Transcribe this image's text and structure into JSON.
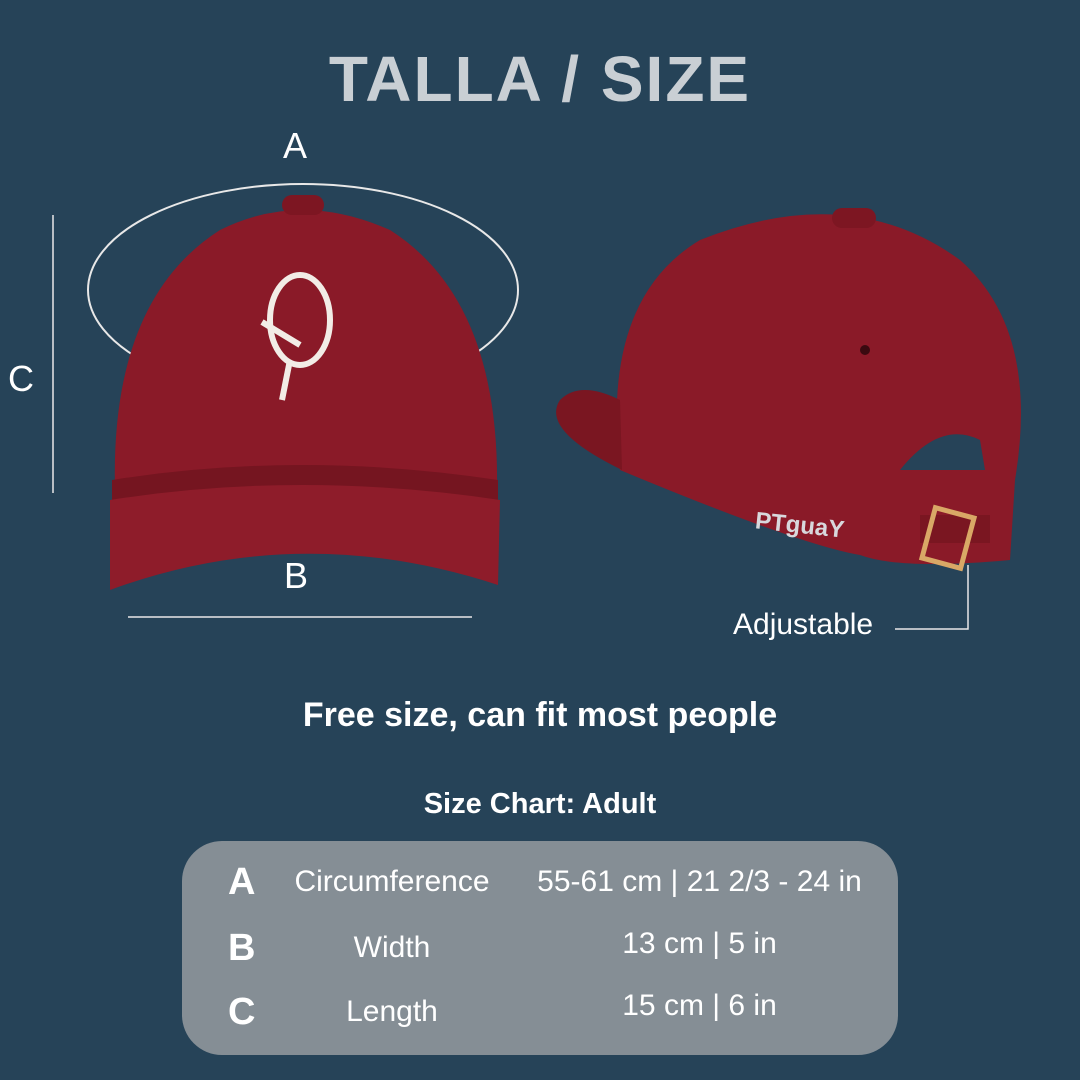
{
  "title": "TALLA / SIZE",
  "labels": {
    "a": "A",
    "b": "B",
    "c": "C"
  },
  "adjustable": "Adjustable",
  "back_embroidery": "PTguaY",
  "logo_text": "Tguay",
  "subtitle": "Free size, can fit most people",
  "chart_title": "Size Chart: Adult",
  "rows": [
    {
      "letter": "A",
      "name": "Circumference",
      "value": "55-61 cm | 21 2/3 - 24 in"
    },
    {
      "letter": "B",
      "name": "Width",
      "value": "13 cm | 5 in"
    },
    {
      "letter": "C",
      "name": "Length",
      "value": "15 cm | 6 in"
    }
  ],
  "colors": {
    "background": "#264358",
    "cap": "#8a1a28",
    "panel": "#858e95"
  }
}
